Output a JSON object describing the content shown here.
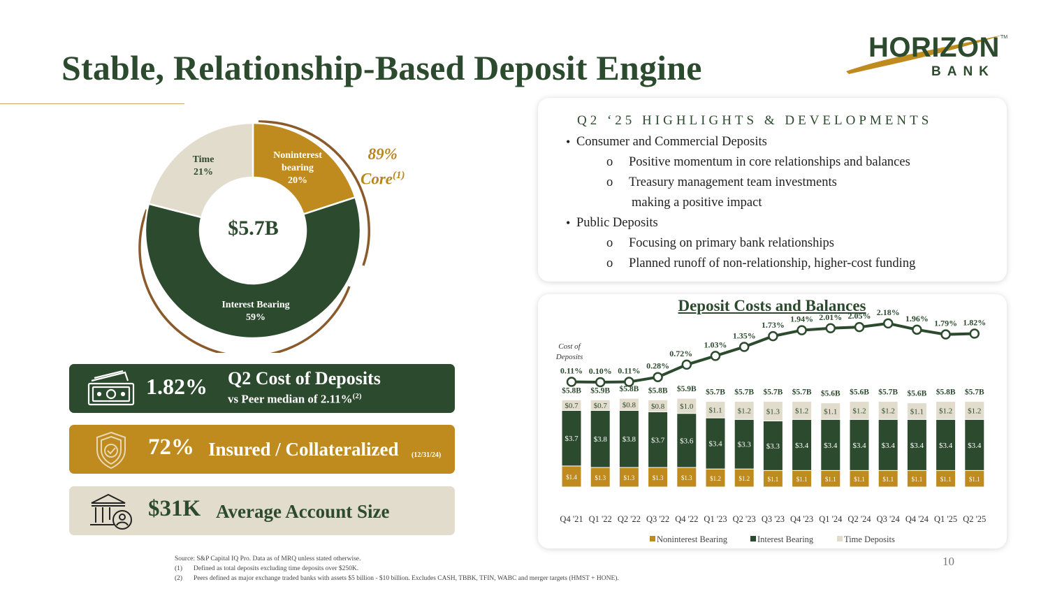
{
  "title": "Stable, Relationship-Based Deposit Engine",
  "logo": {
    "word": "HORIZON",
    "sub": "BANK",
    "tm": "TM"
  },
  "donut": {
    "total": "$5.7B",
    "segments": [
      {
        "name": "Noninterest bearing",
        "label_line1": "Noninterest",
        "label_line2": "bearing",
        "pct_text": "20%",
        "value": 20,
        "color": "#bf8a1e",
        "text_color": "#ffffff"
      },
      {
        "name": "Interest Bearing",
        "label_line1": "Interest Bearing",
        "label_line2": "",
        "pct_text": "59%",
        "value": 59,
        "color": "#2c4a2e",
        "text_color": "#ffffff"
      },
      {
        "name": "Time",
        "label_line1": "Time",
        "label_line2": "",
        "pct_text": "21%",
        "value": 21,
        "color": "#e2dccd",
        "text_color": "#2c4a2e"
      }
    ],
    "core_pct": "89%",
    "core_label": "Core",
    "core_note": "(1)",
    "colors": {
      "ring": "#8a5a2b"
    }
  },
  "stats": {
    "cost": {
      "big": "1.82%",
      "main": "Q2 Cost of Deposits",
      "sub": "vs Peer median of 2.11%",
      "sub_note": "(2)",
      "icon": "cash-icon"
    },
    "insured": {
      "big": "72%",
      "main": "Insured / Collateralized",
      "note": "(12/31/24)",
      "icon": "shield-check-icon"
    },
    "account": {
      "big": "$31K",
      "main": "Average Account Size",
      "icon": "bank-user-icon"
    }
  },
  "highlights": {
    "title": "Q2 ‘25 HIGHLIGHTS & DEVELOPMENTS",
    "bullets": [
      {
        "text": "Consumer and Commercial Deposits",
        "subs": [
          "Positive momentum in core relationships and balances",
          "Treasury management team investments",
          "making a positive impact"
        ]
      },
      {
        "text": "Public Deposits",
        "subs": [
          "Focusing on primary bank relationships",
          "Planned runoff of non-relationship, higher-cost funding"
        ]
      }
    ],
    "sub_marker": "o",
    "bullet_marker": "•"
  },
  "chart_data": {
    "type": "bar",
    "title": "Deposit Costs and Balances",
    "categories": [
      "Q4 '21",
      "Q1 '22",
      "Q2 '22",
      "Q3 '22",
      "Q4 '22",
      "Q1 '23",
      "Q2 '23",
      "Q3 '23",
      "Q4 '23",
      "Q1 '24",
      "Q2 '24",
      "Q3 '24",
      "Q4 '24",
      "Q1 '25",
      "Q2 '25"
    ],
    "series": [
      {
        "name": "Noninterest Bearing",
        "color": "#bf8a1e",
        "values": [
          1.4,
          1.3,
          1.3,
          1.3,
          1.3,
          1.2,
          1.2,
          1.1,
          1.1,
          1.1,
          1.1,
          1.1,
          1.1,
          1.1,
          1.1
        ],
        "labels": [
          "$1.4",
          "$1.3",
          "$1.3",
          "$1.3",
          "$1.3",
          "$1.2",
          "$1.2",
          "$1.1",
          "$1.1",
          "$1.1",
          "$1.1",
          "$1.1",
          "$1.1",
          "$1.1",
          "$1.1"
        ]
      },
      {
        "name": "Interest Bearing",
        "color": "#2c4a2e",
        "values": [
          3.7,
          3.8,
          3.8,
          3.7,
          3.6,
          3.4,
          3.3,
          3.3,
          3.4,
          3.4,
          3.4,
          3.4,
          3.4,
          3.4,
          3.4
        ],
        "labels": [
          "$3.7",
          "$3.8",
          "$3.8",
          "$3.7",
          "$3.6",
          "$3.4",
          "$3.3",
          "$3.3",
          "$3.4",
          "$3.4",
          "$3.4",
          "$3.4",
          "$3.4",
          "$3.4",
          "$3.4"
        ]
      },
      {
        "name": "Time Deposits",
        "color": "#e2dccd",
        "values": [
          0.7,
          0.7,
          0.8,
          0.8,
          1.0,
          1.1,
          1.2,
          1.3,
          1.2,
          1.1,
          1.2,
          1.2,
          1.1,
          1.2,
          1.2
        ],
        "labels": [
          "$0.7",
          "$0.7",
          "$0.8",
          "$0.8",
          "$1.0",
          "$1.1",
          "$1.2",
          "$1.3",
          "$1.2",
          "$1.1",
          "$1.2",
          "$1.2",
          "$1.1",
          "$1.2",
          "$1.2"
        ]
      }
    ],
    "totals": [
      "$5.8B",
      "$5.9B",
      "$5.8B",
      "$5.8B",
      "$5.9B",
      "$5.7B",
      "$5.7B",
      "$5.7B",
      "$5.7B",
      "$5.6B",
      "$5.6B",
      "$5.7B",
      "$5.6B",
      "$5.8B",
      "$5.7B"
    ],
    "cost_of_deposits": {
      "name_line1": "Cost of",
      "name_line2": "Deposits",
      "values": [
        0.11,
        0.1,
        0.11,
        0.28,
        0.72,
        1.03,
        1.35,
        1.73,
        1.94,
        2.01,
        2.05,
        2.18,
        1.96,
        1.79,
        1.82
      ],
      "labels": [
        "0.11%",
        "0.10%",
        "0.11%",
        "0.28%",
        "0.72%",
        "1.03%",
        "1.35%",
        "1.73%",
        "1.94%",
        "2.01%",
        "2.05%",
        "2.18%",
        "1.96%",
        "1.79%",
        "1.82%"
      ],
      "color": "#2c4a2e"
    },
    "legend_position": "bottom",
    "grid": false
  },
  "footnotes": {
    "source": "Source:  S&P Capital IQ Pro. Data as of MRQ unless stated otherwise.",
    "notes": [
      {
        "num": "(1)",
        "text": "Defined as total deposits excluding time deposits over $250K."
      },
      {
        "num": "(2)",
        "text": "Peers defined as major exchange traded banks with assets $5 billion - $10 billion. Excludes CASH, TBBK, TFIN, WABC and merger targets (HMST + HONE)."
      }
    ]
  },
  "page_number": "10"
}
